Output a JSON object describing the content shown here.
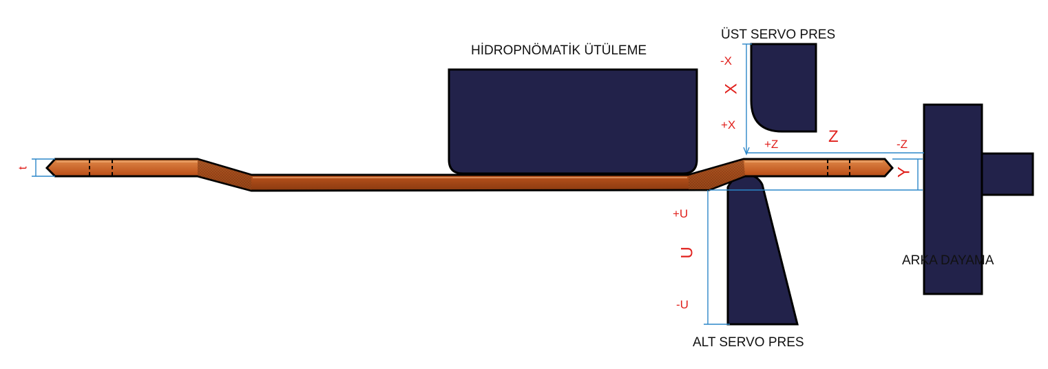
{
  "labels": {
    "hydro": "HİDROPNÖMATİK ÜTÜLEME",
    "upper_press": "ÜST SERVO PRES",
    "lower_press": "ALT SERVO PRES",
    "back_stop": "ARKA DAYAMA"
  },
  "axes": {
    "t": "t",
    "x_neg": "-X",
    "x": "X",
    "x_pos": "+X",
    "z_pos": "+Z",
    "z": "Z",
    "z_neg": "-Z",
    "y": "Y",
    "u_pos": "+U",
    "u": "U",
    "u_neg": "-U"
  },
  "colors": {
    "tool": "#22224a",
    "part": "#c0561e",
    "part_highlight": "#e08a4a",
    "dimension": "#2a86c8",
    "axis_text": "#e0201c"
  }
}
